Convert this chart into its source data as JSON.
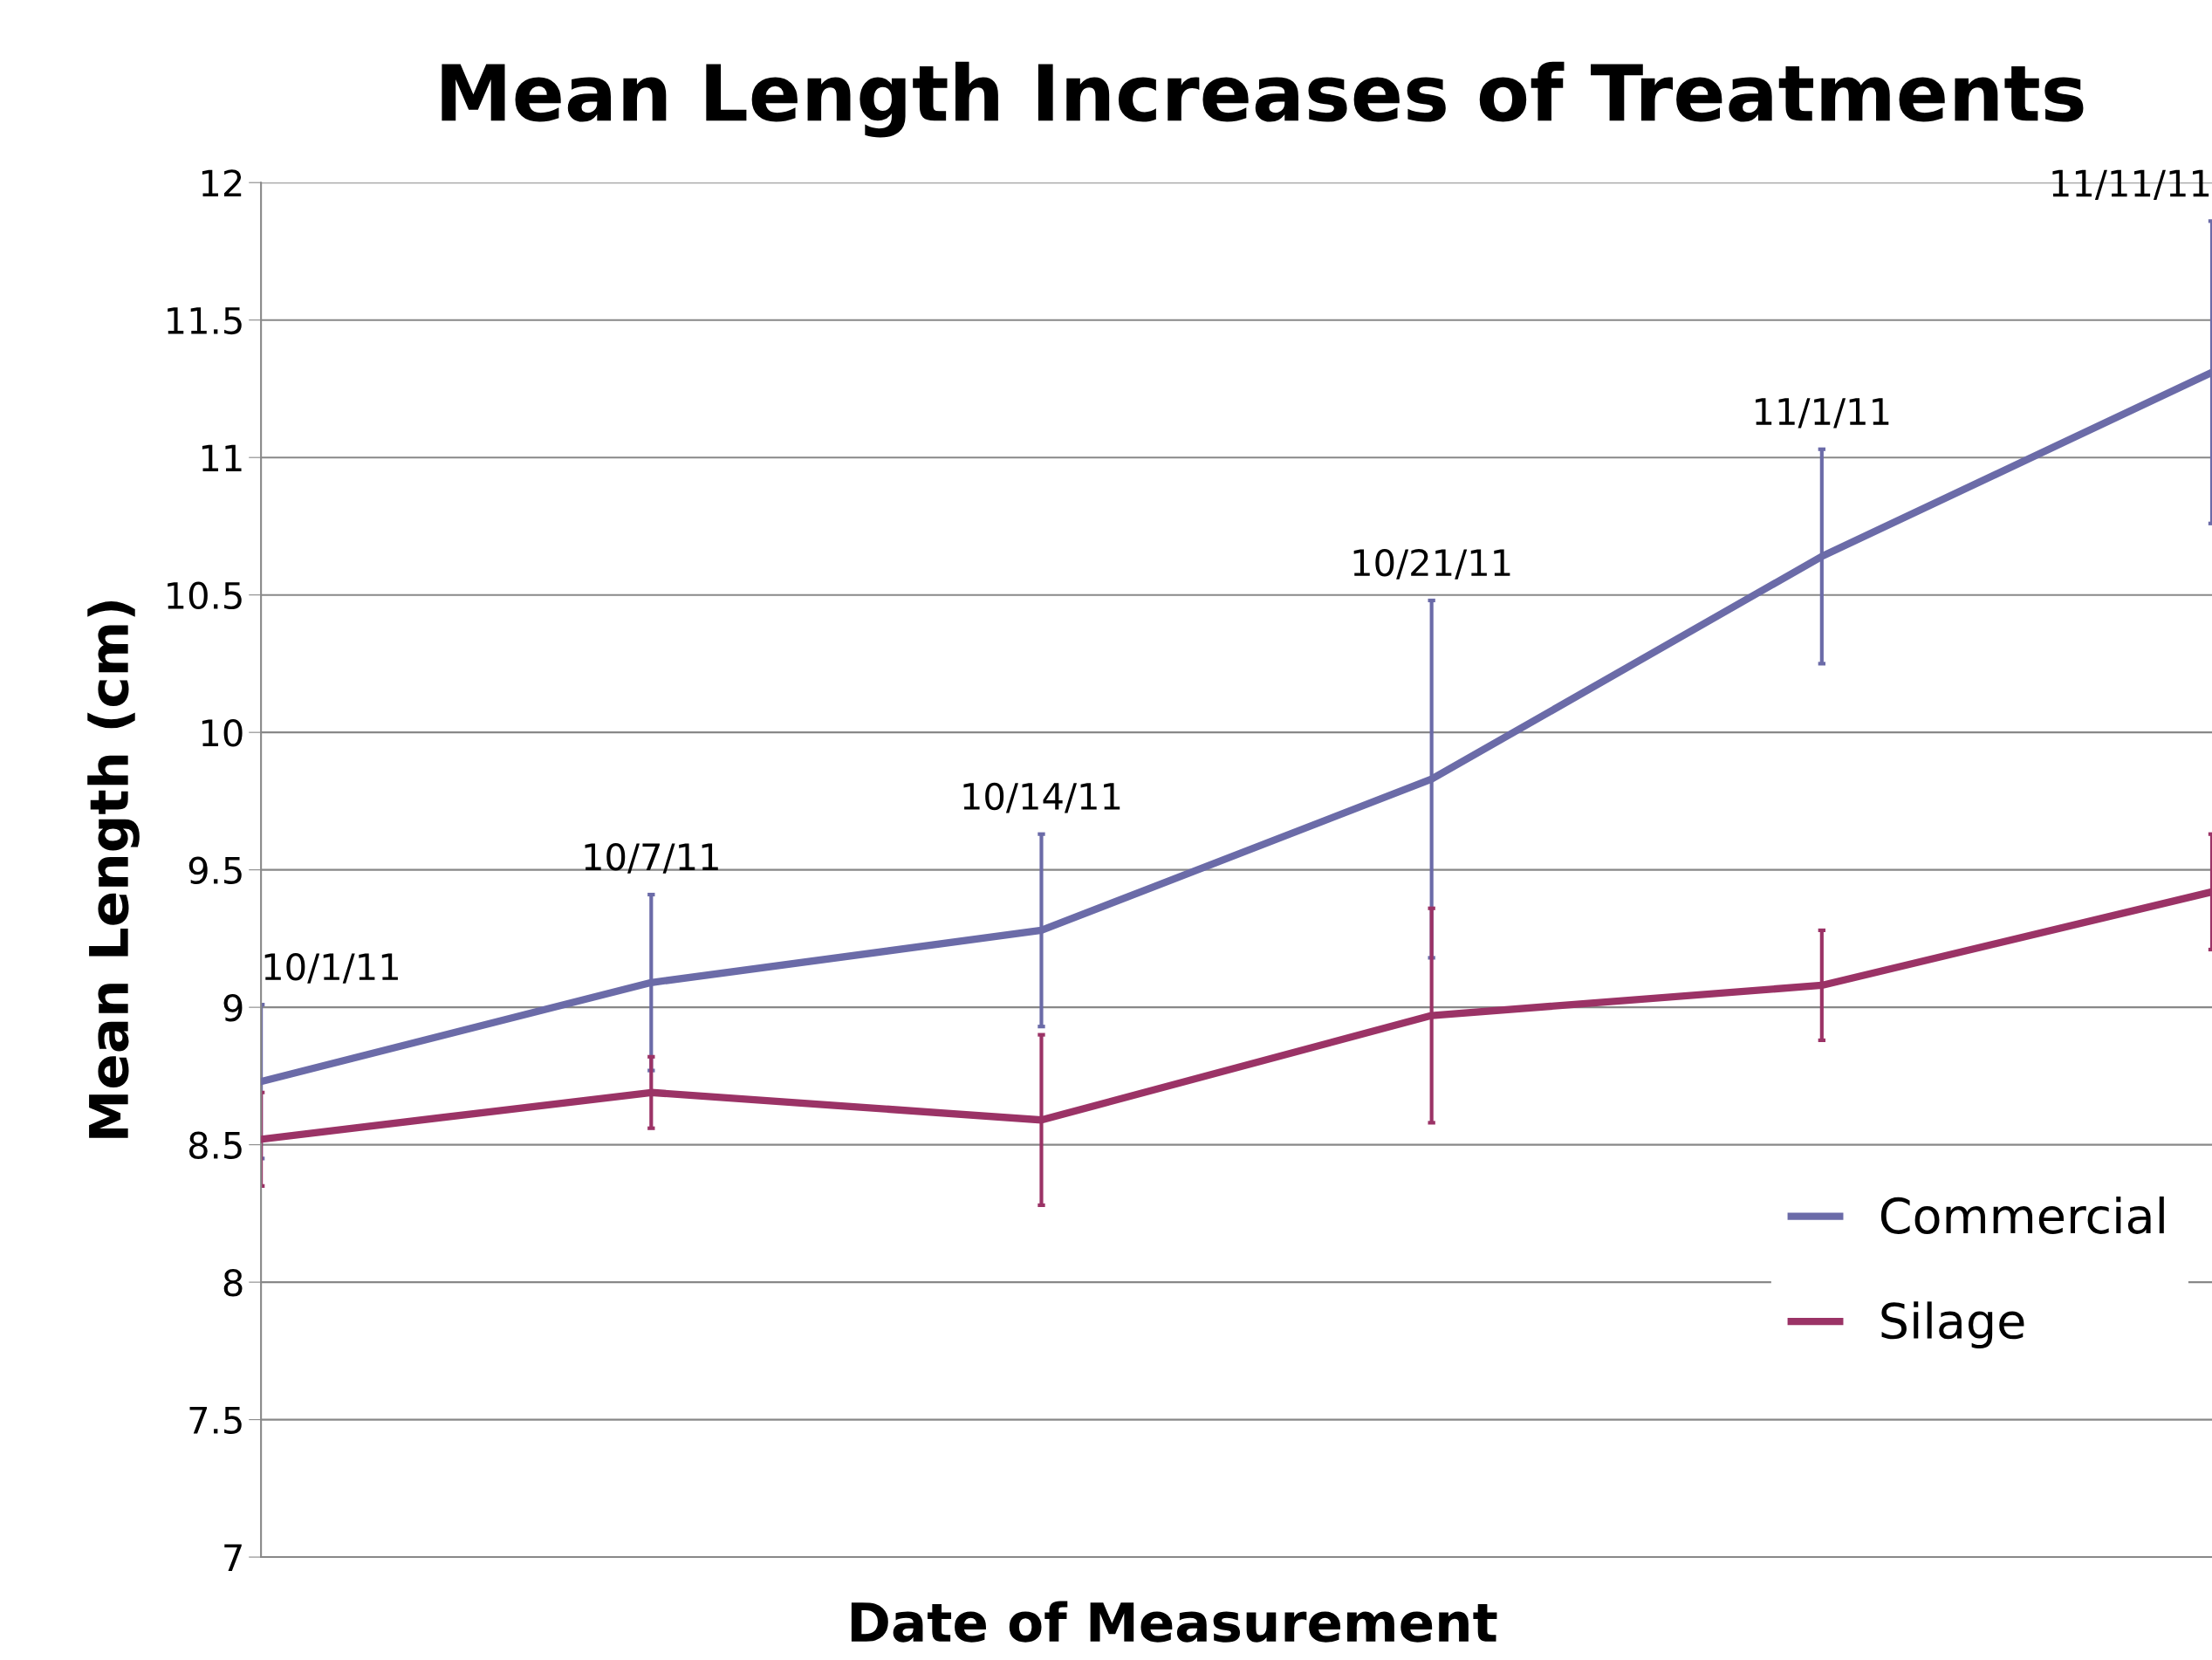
{
  "chart_data": {
    "type": "line",
    "title": "Mean Length Increases of Treatments",
    "xlabel": "Date of Measurement",
    "ylabel": "Mean Length (cm)",
    "categories": [
      null,
      null,
      null,
      null,
      null,
      null
    ],
    "ylim": [
      7,
      12
    ],
    "yticks": [
      7,
      7.5,
      8,
      8.5,
      9,
      9.5,
      10,
      10.5,
      11,
      11.5,
      12
    ],
    "tick_labels": "y",
    "grid": "y",
    "legend": "bottom right",
    "marker": "none",
    "line_style": "solid",
    "series": [
      {
        "name": "Commercial",
        "color": "#6b6ba8",
        "values": [
          8.73,
          9.09,
          9.28,
          9.83,
          10.64,
          11.31
        ],
        "errors": [
          0.28,
          0.32,
          0.35,
          0.65,
          0.39,
          0.55
        ]
      },
      {
        "name": "Silage",
        "color": "#9b3366",
        "values": [
          8.52,
          8.69,
          8.59,
          8.97,
          9.08,
          9.42
        ],
        "errors": [
          0.17,
          0.13,
          0.31,
          0.39,
          0.2,
          0.21
        ]
      }
    ],
    "annotations": [
      "10/1/11",
      "10/7/11",
      "10/14/11",
      "10/21/11",
      "11/1/11",
      "11/11/11"
    ]
  }
}
